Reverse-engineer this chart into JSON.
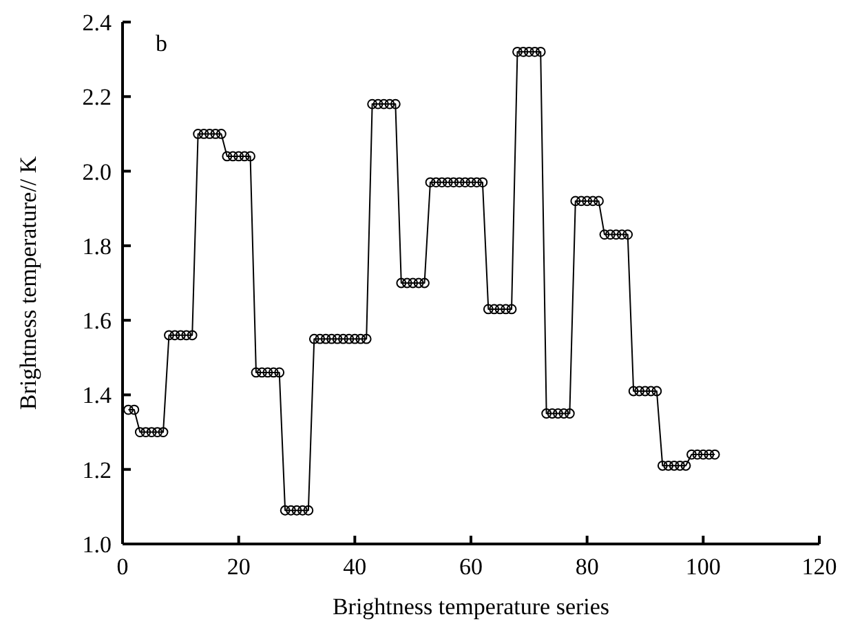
{
  "chart_data": {
    "type": "line",
    "xlabel": "Brightness temperature series",
    "ylabel": "Brightness temperature// K",
    "annotations": [
      "b"
    ],
    "x": [
      1,
      2,
      3,
      4,
      5,
      6,
      7,
      8,
      9,
      10,
      11,
      12,
      13,
      14,
      15,
      16,
      17,
      18,
      19,
      20,
      21,
      22,
      23,
      24,
      25,
      26,
      27,
      28,
      29,
      30,
      31,
      32,
      33,
      34,
      35,
      36,
      37,
      38,
      39,
      40,
      41,
      42,
      43,
      44,
      45,
      46,
      47,
      48,
      49,
      50,
      51,
      52,
      53,
      54,
      55,
      56,
      57,
      58,
      59,
      60,
      61,
      62,
      63,
      64,
      65,
      66,
      67,
      68,
      69,
      70,
      71,
      72,
      73,
      74,
      75,
      76,
      77,
      78,
      79,
      80,
      81,
      82,
      83,
      84,
      85,
      86,
      87,
      88,
      89,
      90,
      91,
      92,
      93,
      94,
      95,
      96,
      97,
      98,
      99,
      100,
      101,
      102
    ],
    "series": [
      {
        "color": "#000000",
        "values": [
          1.36,
          1.36,
          1.3,
          1.3,
          1.3,
          1.3,
          1.3,
          1.56,
          1.56,
          1.56,
          1.56,
          1.56,
          2.1,
          2.1,
          2.1,
          2.1,
          2.1,
          2.04,
          2.04,
          2.04,
          2.04,
          2.04,
          1.46,
          1.46,
          1.46,
          1.46,
          1.46,
          1.09,
          1.09,
          1.09,
          1.09,
          1.09,
          1.55,
          1.55,
          1.55,
          1.55,
          1.55,
          1.55,
          1.55,
          1.55,
          1.55,
          1.55,
          2.18,
          2.18,
          2.18,
          2.18,
          2.18,
          1.7,
          1.7,
          1.7,
          1.7,
          1.7,
          1.97,
          1.97,
          1.97,
          1.97,
          1.97,
          1.97,
          1.97,
          1.97,
          1.97,
          1.97,
          1.63,
          1.63,
          1.63,
          1.63,
          1.63,
          2.32,
          2.32,
          2.32,
          2.32,
          2.32,
          1.35,
          1.35,
          1.35,
          1.35,
          1.35,
          1.92,
          1.92,
          1.92,
          1.92,
          1.92,
          1.83,
          1.83,
          1.83,
          1.83,
          1.83,
          1.41,
          1.41,
          1.41,
          1.41,
          1.41,
          1.21,
          1.21,
          1.21,
          1.21,
          1.21,
          1.24,
          1.24,
          1.24,
          1.24,
          1.24
        ]
      }
    ],
    "xlim": [
      0,
      120
    ],
    "xticks": [
      0,
      20,
      40,
      60,
      80,
      100,
      120
    ],
    "ylim": [
      1.0,
      2.4
    ],
    "yticks": [
      {
        "value": 1.0,
        "label": "1.0"
      },
      {
        "value": 1.2,
        "label": "1.2"
      },
      {
        "value": 1.4,
        "label": "1.4"
      },
      {
        "value": 1.6,
        "label": "1.6"
      },
      {
        "value": 1.8,
        "label": "1.8"
      },
      {
        "value": 2.0,
        "label": "2.0"
      },
      {
        "value": 2.2,
        "label": "2.2"
      },
      {
        "value": 2.4,
        "label": "2.4"
      }
    ],
    "grid": false,
    "legend": false,
    "marker": "circle",
    "line_style": "solid"
  }
}
